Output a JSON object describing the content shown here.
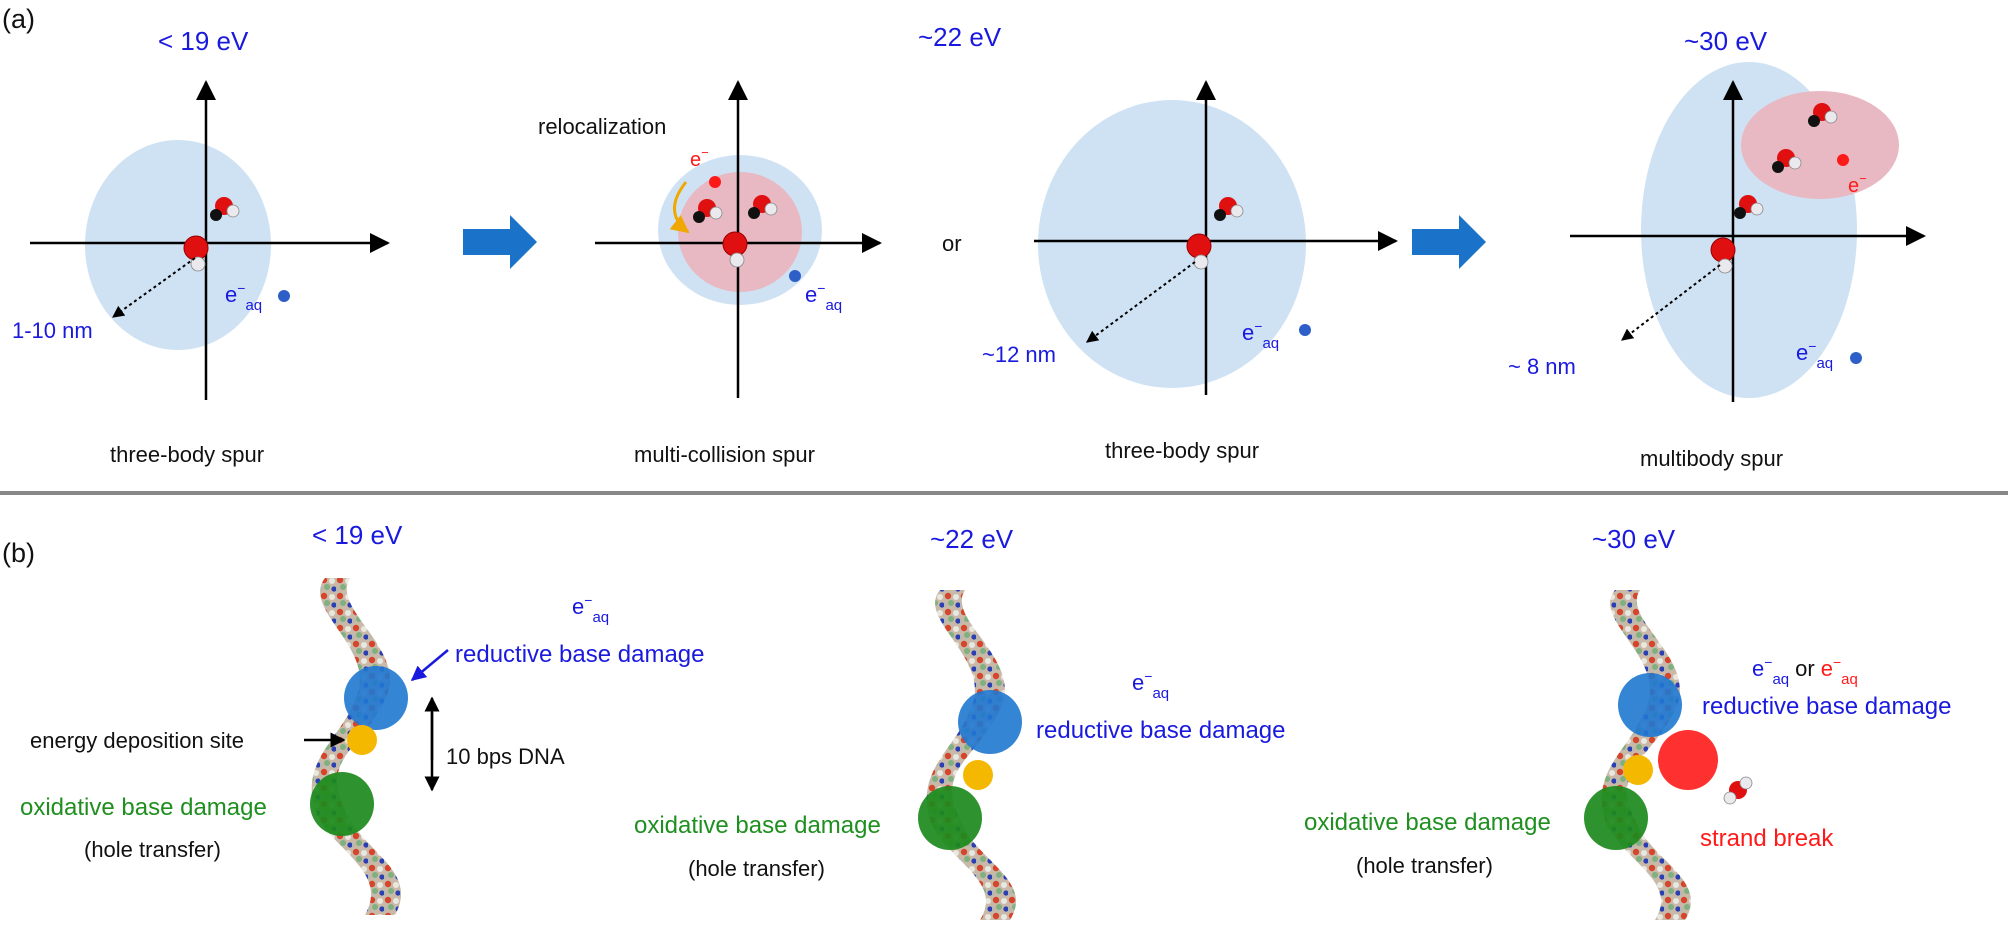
{
  "panel_a": {
    "label": "(a)",
    "energies": [
      "< 19 eV",
      "~22 eV",
      "~30 eV"
    ],
    "captions": [
      "three-body spur",
      "multi-collision spur",
      "three-body spur",
      "multibody spur"
    ],
    "radii": [
      "1-10 nm",
      "~12 nm",
      "~ 8 nm"
    ],
    "relocalization": "relocalization",
    "or": "or",
    "electron": "e",
    "electron_sup": "−",
    "eaq_sub": "aq"
  },
  "panel_b": {
    "label": "(b)",
    "energies": [
      "< 19 eV",
      "~22 eV",
      "~30 eV"
    ],
    "reductive": "reductive base damage",
    "oxidative": "oxidative base damage",
    "hole": "(hole transfer)",
    "deposition": "energy deposition site",
    "bps": "10 bps DNA",
    "strand_break": "strand break",
    "or": "or"
  },
  "colors": {
    "text_blue": "#1a1adf",
    "text_red": "#ff1a1a",
    "text_green": "#1f8f1f",
    "spur_blue": "#cfe2f3",
    "spur_pink": "#e8b9c3",
    "arrow_blue": "#1a73c9",
    "divider": "#888888"
  }
}
